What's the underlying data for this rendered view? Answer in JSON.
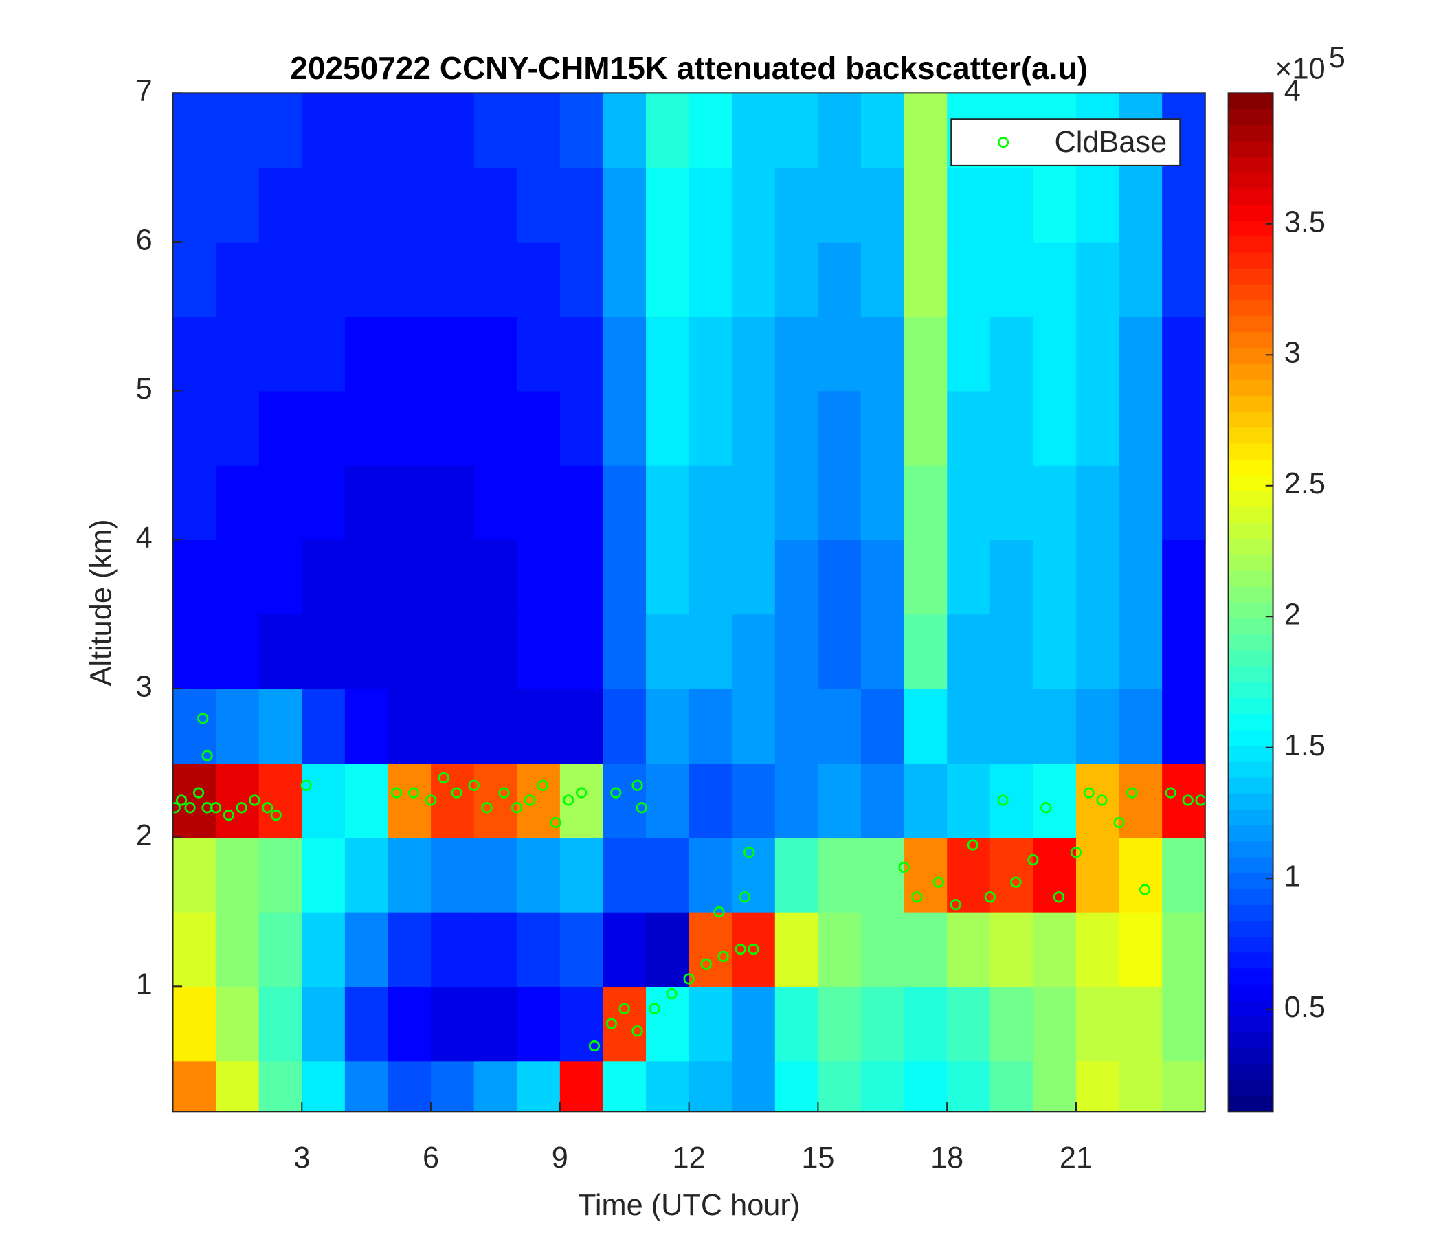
{
  "chart_data": {
    "type": "heatmap",
    "title": "20250722 CCNY-CHM15K attenuated backscatter(a.u)",
    "xlabel": "Time (UTC hour)",
    "ylabel": "Altitude (km)",
    "xlim": [
      0,
      24
    ],
    "ylim": [
      0.16,
      7
    ],
    "xticks": [
      3,
      6,
      9,
      12,
      15,
      18,
      21
    ],
    "yticks": [
      1,
      2,
      3,
      4,
      5,
      6,
      7
    ],
    "colormap": "jet",
    "clim": [
      0.11,
      4
    ],
    "cticks": [
      0.5,
      1,
      1.5,
      2,
      2.5,
      3,
      3.5,
      4
    ],
    "colorbar_multiplier": "×10",
    "colorbar_exponent": 5,
    "legend_position": "top-right",
    "x": [
      0.5,
      1.5,
      2.5,
      3.5,
      4.5,
      5.5,
      6.5,
      7.5,
      8.5,
      9.5,
      10.5,
      11.5,
      12.5,
      13.5,
      14.5,
      15.5,
      16.5,
      17.5,
      18.5,
      19.5,
      20.5,
      21.5,
      22.5,
      23.5
    ],
    "y": [
      0.25,
      0.75,
      1.25,
      1.75,
      2.25,
      2.75,
      3.25,
      3.75,
      4.25,
      4.75,
      5.25,
      5.75,
      6.25,
      6.75
    ],
    "z": [
      [
        3.0,
        2.4,
        1.9,
        1.5,
        1.1,
        0.9,
        1.0,
        1.2,
        1.4,
        3.5,
        1.6,
        1.4,
        1.3,
        1.2,
        1.6,
        1.8,
        1.7,
        1.6,
        1.7,
        1.9,
        2.1,
        2.4,
        2.3,
        2.2
      ],
      [
        2.6,
        2.2,
        1.8,
        1.3,
        0.8,
        0.6,
        0.5,
        0.5,
        0.6,
        0.7,
        3.3,
        1.6,
        1.4,
        1.2,
        1.7,
        1.9,
        1.8,
        1.7,
        1.8,
        2.0,
        2.1,
        2.3,
        2.3,
        2.1
      ],
      [
        2.4,
        2.1,
        1.9,
        1.4,
        1.1,
        0.8,
        0.7,
        0.7,
        0.8,
        0.9,
        0.5,
        0.4,
        3.2,
        3.4,
        2.4,
        2.1,
        2.0,
        2.0,
        2.2,
        2.3,
        2.2,
        2.4,
        2.5,
        2.1
      ],
      [
        2.3,
        2.1,
        2.0,
        1.6,
        1.4,
        1.2,
        1.1,
        1.1,
        1.2,
        1.3,
        0.9,
        0.9,
        1.1,
        1.2,
        1.8,
        2.0,
        2.0,
        3.0,
        3.4,
        3.3,
        3.5,
        2.8,
        2.6,
        2.0
      ],
      [
        3.8,
        3.6,
        3.4,
        1.5,
        1.6,
        3.0,
        3.3,
        3.2,
        3.0,
        2.2,
        1.0,
        1.1,
        0.9,
        1.0,
        1.1,
        1.2,
        1.1,
        1.3,
        1.4,
        1.5,
        1.6,
        2.8,
        3.0,
        3.5
      ],
      [
        1.0,
        1.1,
        1.2,
        0.8,
        0.6,
        0.5,
        0.5,
        0.5,
        0.5,
        0.5,
        0.9,
        1.2,
        1.1,
        1.2,
        1.1,
        1.1,
        1.0,
        1.5,
        1.3,
        1.3,
        1.3,
        1.2,
        1.1,
        0.6
      ],
      [
        0.6,
        0.6,
        0.5,
        0.5,
        0.5,
        0.5,
        0.5,
        0.5,
        0.6,
        0.6,
        1.0,
        1.3,
        1.3,
        1.2,
        1.1,
        1.0,
        1.1,
        1.9,
        1.3,
        1.3,
        1.4,
        1.3,
        1.2,
        0.6
      ],
      [
        0.6,
        0.6,
        0.6,
        0.5,
        0.5,
        0.5,
        0.5,
        0.5,
        0.6,
        0.6,
        1.0,
        1.4,
        1.3,
        1.3,
        1.1,
        1.0,
        1.1,
        2.0,
        1.4,
        1.3,
        1.4,
        1.3,
        1.2,
        0.6
      ],
      [
        0.7,
        0.6,
        0.6,
        0.6,
        0.5,
        0.5,
        0.5,
        0.6,
        0.6,
        0.6,
        1.0,
        1.4,
        1.3,
        1.3,
        1.2,
        1.1,
        1.2,
        2.0,
        1.4,
        1.4,
        1.4,
        1.3,
        1.2,
        0.7
      ],
      [
        0.7,
        0.7,
        0.6,
        0.6,
        0.6,
        0.6,
        0.6,
        0.6,
        0.6,
        0.7,
        1.1,
        1.5,
        1.4,
        1.3,
        1.2,
        1.1,
        1.2,
        2.1,
        1.4,
        1.4,
        1.5,
        1.4,
        1.2,
        0.7
      ],
      [
        0.7,
        0.7,
        0.7,
        0.7,
        0.6,
        0.6,
        0.6,
        0.6,
        0.7,
        0.7,
        1.1,
        1.5,
        1.4,
        1.3,
        1.2,
        1.2,
        1.2,
        2.1,
        1.5,
        1.4,
        1.5,
        1.4,
        1.2,
        0.7
      ],
      [
        0.8,
        0.7,
        0.7,
        0.7,
        0.7,
        0.7,
        0.7,
        0.7,
        0.7,
        0.8,
        1.2,
        1.6,
        1.5,
        1.4,
        1.3,
        1.2,
        1.3,
        2.2,
        1.5,
        1.5,
        1.5,
        1.4,
        1.3,
        0.8
      ],
      [
        0.8,
        0.8,
        0.7,
        0.7,
        0.7,
        0.7,
        0.7,
        0.7,
        0.8,
        0.8,
        1.2,
        1.6,
        1.5,
        1.4,
        1.3,
        1.3,
        1.3,
        2.2,
        1.5,
        1.5,
        1.6,
        1.5,
        1.3,
        0.8
      ],
      [
        0.8,
        0.8,
        0.8,
        0.7,
        0.7,
        0.7,
        0.7,
        0.8,
        0.8,
        0.9,
        1.3,
        1.7,
        1.6,
        1.4,
        1.4,
        1.3,
        1.4,
        2.2,
        1.6,
        1.6,
        1.6,
        1.5,
        1.3,
        0.8
      ]
    ],
    "series": [
      {
        "name": "CldBase",
        "color": "#00ff00",
        "x": [
          0.05,
          0.2,
          0.4,
          0.6,
          0.8,
          1.0,
          1.3,
          1.6,
          1.9,
          2.2,
          2.4,
          0.7,
          0.8,
          3.1,
          5.2,
          5.6,
          6.0,
          6.3,
          6.6,
          7.0,
          7.3,
          7.7,
          8.0,
          8.3,
          8.6,
          8.9,
          9.2,
          9.5,
          10.3,
          10.8,
          10.9,
          9.8,
          10.2,
          10.5,
          10.8,
          11.2,
          11.6,
          12.0,
          12.4,
          12.8,
          13.2,
          13.5,
          12.7,
          13.3,
          13.4,
          17.0,
          17.3,
          17.8,
          18.2,
          18.6,
          19.0,
          19.3,
          19.6,
          20.0,
          20.3,
          20.6,
          21.0,
          21.3,
          21.6,
          22.0,
          22.3,
          22.6,
          23.2,
          23.6,
          23.9
        ],
        "y": [
          2.2,
          2.25,
          2.2,
          2.3,
          2.2,
          2.2,
          2.15,
          2.2,
          2.25,
          2.2,
          2.15,
          2.8,
          2.55,
          2.35,
          2.3,
          2.3,
          2.25,
          2.4,
          2.3,
          2.35,
          2.2,
          2.3,
          2.2,
          2.25,
          2.35,
          2.1,
          2.25,
          2.3,
          2.3,
          2.35,
          2.2,
          0.6,
          0.75,
          0.85,
          0.7,
          0.85,
          0.95,
          1.05,
          1.15,
          1.2,
          1.25,
          1.25,
          1.5,
          1.6,
          1.9,
          1.8,
          1.6,
          1.7,
          1.55,
          1.95,
          1.6,
          2.25,
          1.7,
          1.85,
          2.2,
          1.6,
          1.9,
          2.3,
          2.25,
          2.1,
          2.3,
          1.65,
          2.3,
          2.25,
          2.25
        ]
      }
    ]
  }
}
